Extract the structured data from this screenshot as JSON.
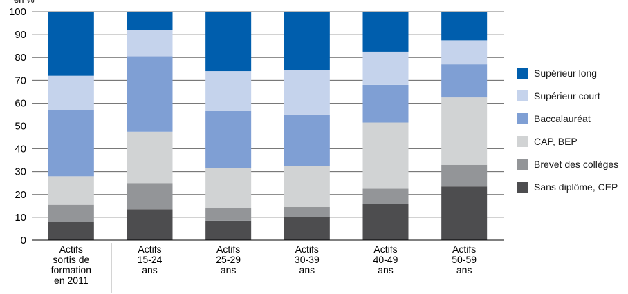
{
  "chart_data": {
    "type": "bar",
    "stacked": true,
    "ylabel": "en %",
    "ylim": [
      0,
      100
    ],
    "yticks": [
      0,
      10,
      20,
      30,
      40,
      50,
      60,
      70,
      80,
      90,
      100
    ],
    "grid": true,
    "legend_position": "right",
    "categories": [
      [
        "Actifs",
        "sortis de",
        "formation",
        "en 2011"
      ],
      [
        "Actifs",
        "15-24",
        "ans"
      ],
      [
        "Actifs",
        "25-29",
        "ans"
      ],
      [
        "Actifs",
        "30-39",
        "ans"
      ],
      [
        "Actifs",
        "40-49",
        "ans"
      ],
      [
        "Actifs",
        "50-59",
        "ans"
      ]
    ],
    "series": [
      {
        "name": "Sans diplôme, CEP",
        "color": "#4d4d4f",
        "values": [
          8,
          13.5,
          8.5,
          10,
          16,
          23.5
        ]
      },
      {
        "name": "Brevet des collèges",
        "color": "#939598",
        "values": [
          7.5,
          11.5,
          5.5,
          4.5,
          6.5,
          9.5
        ]
      },
      {
        "name": "CAP, BEP",
        "color": "#d1d3d4",
        "values": [
          12.5,
          22.5,
          17.5,
          18,
          29,
          29.5
        ]
      },
      {
        "name": "Baccalauréat",
        "color": "#7f9fd4",
        "values": [
          29,
          33,
          25,
          22.5,
          16.5,
          14.5
        ]
      },
      {
        "name": "Supérieur court",
        "color": "#c5d3ec",
        "values": [
          15,
          11.5,
          17.5,
          19.5,
          14.5,
          10.5
        ]
      },
      {
        "name": "Supérieur long",
        "color": "#005ead",
        "values": [
          28,
          8,
          26,
          25.5,
          17.5,
          12.5
        ]
      }
    ]
  },
  "legend": {
    "items": [
      {
        "label": "Supérieur long",
        "color": "#005ead"
      },
      {
        "label": "Supérieur court",
        "color": "#c5d3ec"
      },
      {
        "label": "Baccalauréat",
        "color": "#7f9fd4"
      },
      {
        "label": "CAP, BEP",
        "color": "#d1d3d4"
      },
      {
        "label": "Brevet des collèges",
        "color": "#939598"
      },
      {
        "label": "Sans diplôme, CEP",
        "color": "#4d4d4f"
      }
    ]
  }
}
